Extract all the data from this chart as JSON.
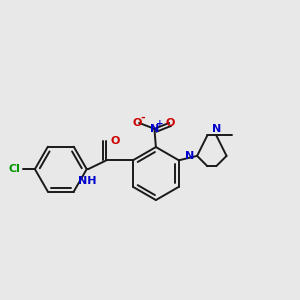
{
  "background_color": "#e8e8e8",
  "bond_color": "#1a1a1a",
  "atom_colors": {
    "C": "#1a1a1a",
    "N": "#0000cc",
    "O": "#cc0000",
    "Cl": "#009900",
    "H": "#1a1a1a"
  },
  "figsize": [
    3.0,
    3.0
  ],
  "dpi": 100
}
